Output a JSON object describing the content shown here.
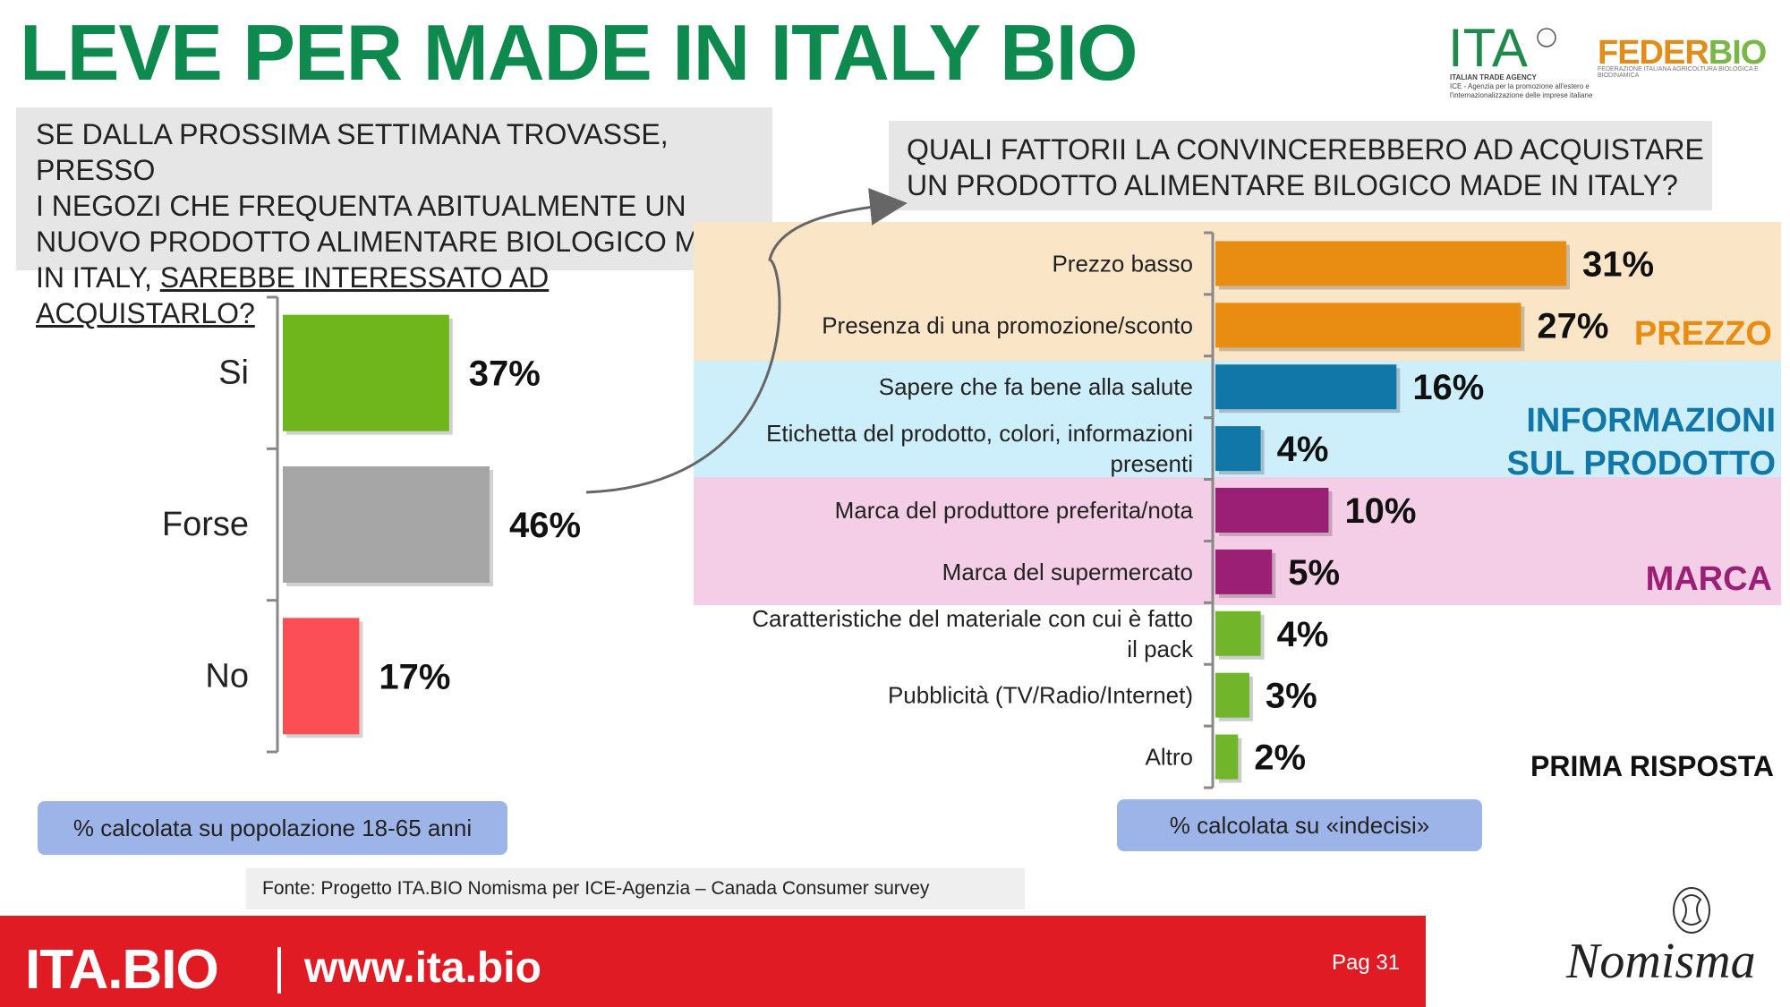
{
  "title": "LEVE PER MADE IN ITALY BIO",
  "question_left": {
    "line1": "SE DALLA PROSSIMA SETTIMANA TROVASSE, PRESSO",
    "line2": "I NEGOZI CHE FREQUENTA ABITUALMENTE UN",
    "line3": "NUOVO PRODOTTO ALIMENTARE BIOLOGICO MADE",
    "line4_a": "IN ITALY, ",
    "line4_b": "SAREBBE INTERESSATO AD ACQUISTARLO? "
  },
  "question_right": {
    "line1": "QUALI FATTORII LA CONVINCEREBBERO AD ACQUISTARE",
    "line2": "UN PRODOTTO ALIMENTARE BILOGICO MADE IN ITALY?"
  },
  "groups": {
    "prezzo": "PREZZO",
    "info_line1": "INFORMAZIONI",
    "info_line2": "SUL PRODOTTO",
    "marca": "MARCA"
  },
  "colors": {
    "title": "#0e8a4f",
    "si": "#6fb51c",
    "forse": "#a6a6a6",
    "no": "#fc4f55",
    "prezzo": "#e88c12",
    "prezzo_band": "#fbe5c7",
    "info": "#1077a8",
    "info_band": "#cdeefb",
    "marca": "#9b1f74",
    "marca_band": "#f4cde6",
    "other": "#71b52a",
    "footer": "#e01b24"
  },
  "prima_risposta": "PRIMA RISPOSTA",
  "note_left": "% calcolata su popolazione 18-65 anni",
  "note_right": "% calcolata su «indecisi»",
  "source": "Fonte: Progetto ITA.BIO Nomisma per ICE-Agenzia – Canada Consumer survey",
  "footer": {
    "brand": "ITA.BIO",
    "url": "www.ita.bio",
    "page": "Pag 31"
  },
  "logos": {
    "ita": "ITA",
    "ita_sub1": "ITALIAN TRADE AGENCY",
    "ita_sub2": "ICE - Agenzia per la promozione all'estero e",
    "ita_sub3": "l'internazionalizzazione delle imprese italiane",
    "federbio_a": "FEDER",
    "federbio_b": "BIO",
    "federbio_sub": "FEDERAZIONE ITALIANA AGRICOLTURA BIOLOGICA E BIODINAMICA",
    "nomisma": "Nomisma"
  },
  "chart_data": [
    {
      "type": "bar",
      "orientation": "horizontal",
      "categories": [
        "Si",
        "Forse",
        "No"
      ],
      "values": [
        37,
        46,
        17
      ],
      "value_labels": [
        "37%",
        "46%",
        "17%"
      ],
      "xlim": [
        0,
        46
      ],
      "grid": false
    },
    {
      "type": "bar",
      "orientation": "horizontal",
      "categories": [
        [
          "Prezzo basso"
        ],
        [
          "Presenza di una promozione/sconto"
        ],
        [
          "Sapere che fa bene alla salute"
        ],
        [
          "Etichetta del prodotto, colori, informazioni",
          "presenti"
        ],
        [
          "Marca del produttore preferita/nota"
        ],
        [
          "Marca del supermercato"
        ],
        [
          "Caratteristiche del materiale con cui è fatto",
          "il pack"
        ],
        [
          "Pubblicità (TV/Radio/Internet)"
        ],
        [
          "Altro"
        ]
      ],
      "values": [
        31,
        27,
        16,
        4,
        10,
        5,
        4,
        3,
        2
      ],
      "value_labels": [
        "31%",
        "27%",
        "16%",
        "4%",
        "10%",
        "5%",
        "4%",
        "3%",
        "2%"
      ],
      "groups": [
        "prezzo",
        "prezzo",
        "info",
        "info",
        "marca",
        "marca",
        "other",
        "other",
        "other"
      ],
      "xlim": [
        0,
        31
      ],
      "grid": false
    }
  ]
}
